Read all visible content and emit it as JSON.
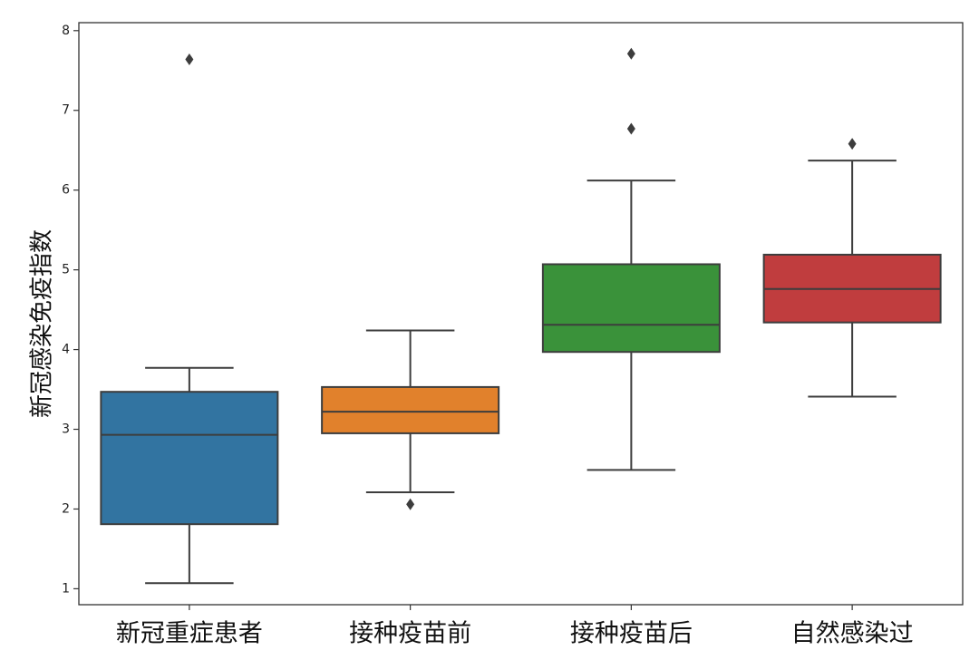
{
  "chart_data": {
    "type": "boxplot",
    "title": "",
    "xlabel": "",
    "ylabel": "新冠感染免疫指数",
    "ylim": [
      0.8,
      8.1
    ],
    "yticks": [
      1,
      2,
      3,
      4,
      5,
      6,
      7,
      8
    ],
    "grid": false,
    "categories": [
      "新冠重症患者",
      "接种疫苗前",
      "接种疫苗后",
      "自然感染过"
    ],
    "colors": [
      "#3274a1",
      "#e1812c",
      "#3a923a",
      "#c03d3e"
    ],
    "boxes": [
      {
        "whisker_low": 1.07,
        "q1": 1.81,
        "median": 2.93,
        "q3": 3.47,
        "whisker_high": 3.77,
        "outliers": [
          7.64
        ]
      },
      {
        "whisker_low": 2.21,
        "q1": 2.95,
        "median": 3.22,
        "q3": 3.53,
        "whisker_high": 4.24,
        "outliers": [
          2.06
        ]
      },
      {
        "whisker_low": 2.49,
        "q1": 3.97,
        "median": 4.31,
        "q3": 5.07,
        "whisker_high": 6.12,
        "outliers": [
          6.77,
          7.71
        ]
      },
      {
        "whisker_low": 3.41,
        "q1": 4.34,
        "median": 4.76,
        "q3": 5.19,
        "whisker_high": 6.37,
        "outliers": [
          6.58
        ]
      }
    ]
  }
}
